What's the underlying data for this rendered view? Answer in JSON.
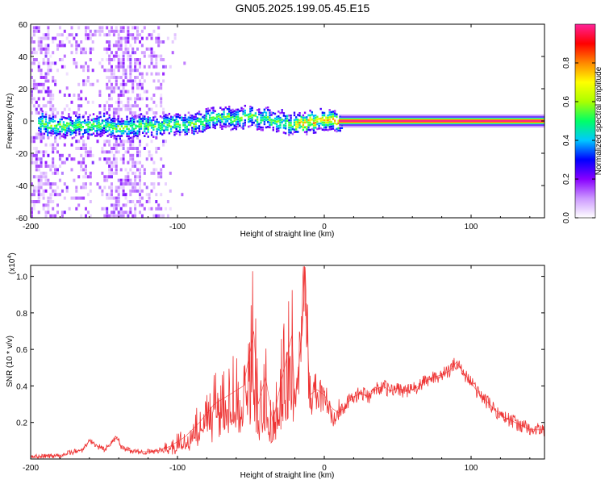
{
  "figure_title": "GN05.2025.199.05.45.E15",
  "chart_data": [
    {
      "type": "heatmap",
      "xlabel": "Height of straight line (km)",
      "ylabel": "Frequency (Hz)",
      "xlim": [
        -200,
        150
      ],
      "ylim": [
        -60,
        60
      ],
      "xticks": [
        -200,
        -100,
        0,
        100
      ],
      "xtick_labels": [
        "-200",
        "-100",
        "0",
        "100"
      ],
      "yticks": [
        -60,
        -40,
        -20,
        0,
        20,
        40,
        60
      ],
      "ytick_labels": [
        "-60",
        "-40",
        "-20",
        "0",
        "20",
        "40",
        "60"
      ],
      "colorbar": {
        "label": "Normalized spectral amplitude",
        "range": [
          0,
          1
        ],
        "ticks": [
          0.0,
          0.2,
          0.4,
          0.6,
          0.8
        ],
        "tick_labels": [
          "0.0",
          "0.2",
          "0.4",
          "0.6",
          "0.8"
        ],
        "colormap": [
          "#ffffff",
          "#cc99ff",
          "#8800ff",
          "#0000ff",
          "#00c8ff",
          "#00ff66",
          "#aaff00",
          "#ffff00",
          "#ff8800",
          "#ff0000",
          "#ff2299"
        ]
      },
      "ridge": {
        "x": [
          -190,
          -180,
          -170,
          -160,
          -150,
          -140,
          -130,
          -120,
          -110,
          -100,
          -90,
          -80,
          -70,
          -60,
          -50,
          -40,
          -30,
          -20,
          -10,
          -5,
          0,
          10,
          150
        ],
        "y": [
          -3,
          -2,
          -3,
          -2,
          -2,
          -4,
          -3,
          -2,
          -2,
          -1,
          -2,
          1,
          3,
          2,
          3,
          2,
          0,
          -1,
          0,
          1,
          2,
          0,
          0
        ]
      },
      "high_amplitude_line": {
        "y": 0,
        "x_start": 10,
        "x_end": 150
      }
    },
    {
      "type": "line",
      "xlabel": "Height of straight line (km)",
      "ylabel": "SNR (10 * v/v)",
      "y_multiplier_label": "(x10",
      "y_multiplier_exp": "4",
      "y_multiplier_close": ")",
      "xlim": [
        -200,
        150
      ],
      "ylim": [
        0,
        1.06
      ],
      "xticks": [
        -200,
        -100,
        0,
        100
      ],
      "xtick_labels": [
        "-200",
        "-100",
        "0",
        "100"
      ],
      "yticks": [
        0.2,
        0.4,
        0.6,
        0.8,
        1.0
      ],
      "ytick_labels": [
        "0.2",
        "0.4",
        "0.6",
        "0.8",
        "1.0"
      ],
      "line_color": "#ee3333",
      "series": [
        {
          "x": [
            -200,
            -180,
            -165,
            -160,
            -150,
            -141,
            -138,
            -130,
            -115,
            -105,
            -95,
            -85,
            -75,
            -65,
            -55,
            -48,
            -45,
            -40,
            -35,
            -30,
            -22,
            -20,
            -15,
            -13,
            -10,
            -5,
            0,
            5,
            10,
            15,
            20,
            25,
            30,
            35,
            40,
            45,
            50,
            55,
            60,
            65,
            70,
            75,
            80,
            85,
            90,
            95,
            100,
            105,
            110,
            115,
            120,
            125,
            130,
            135,
            140,
            150
          ],
          "y": [
            0.01,
            0.02,
            0.05,
            0.1,
            0.05,
            0.12,
            0.06,
            0.04,
            0.04,
            0.07,
            0.12,
            0.2,
            0.3,
            0.35,
            0.4,
            0.7,
            0.3,
            0.45,
            0.2,
            0.4,
            0.68,
            0.3,
            0.7,
            1.05,
            0.35,
            0.38,
            0.35,
            0.28,
            0.25,
            0.3,
            0.34,
            0.36,
            0.34,
            0.38,
            0.4,
            0.37,
            0.39,
            0.37,
            0.38,
            0.4,
            0.43,
            0.45,
            0.46,
            0.48,
            0.53,
            0.47,
            0.42,
            0.36,
            0.32,
            0.28,
            0.24,
            0.22,
            0.2,
            0.18,
            0.16,
            0.16
          ]
        }
      ]
    }
  ]
}
